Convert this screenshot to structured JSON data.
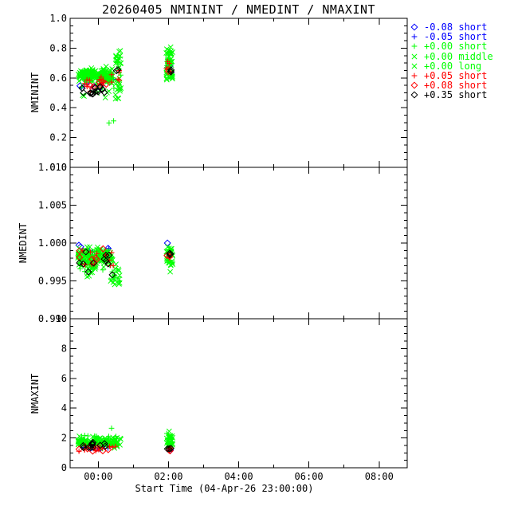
{
  "chart_data": {
    "type": "scatter",
    "title": "20260405 NMININT / NMEDINT / NMAXINT",
    "colors": {
      "blue": "#0000ff",
      "green": "#00ff00",
      "red": "#ff0000",
      "black": "#000000",
      "background": "#ffffff",
      "axis": "#000000"
    },
    "legend": {
      "position": "top-right",
      "items": [
        {
          "symbol": "diamond",
          "color": "blue",
          "label": "-0.08 short"
        },
        {
          "symbol": "plus",
          "color": "blue",
          "label": "-0.05 short"
        },
        {
          "symbol": "plus",
          "color": "green",
          "label": "+0.00 short"
        },
        {
          "symbol": "x",
          "color": "green",
          "label": "+0.00 middle"
        },
        {
          "symbol": "x",
          "color": "green",
          "label": "+0.00 long"
        },
        {
          "symbol": "plus",
          "color": "red",
          "label": "+0.05 short"
        },
        {
          "symbol": "diamond",
          "color": "red",
          "label": "+0.08 short"
        },
        {
          "symbol": "diamond",
          "color": "black",
          "label": "+0.35 short"
        }
      ]
    },
    "xaxis": {
      "title": "Start Time (04-Apr-26 23:00:00)",
      "lim": [
        -0.8,
        8.8
      ],
      "minor": 1,
      "ticks": [
        {
          "v": 0,
          "label": "00:00"
        },
        {
          "v": 2,
          "label": "02:00"
        },
        {
          "v": 4,
          "label": "04:00"
        },
        {
          "v": 6,
          "label": "06:00"
        },
        {
          "v": 8,
          "label": "08:00"
        }
      ]
    },
    "panels": [
      {
        "name": "NMININT",
        "ylim": [
          0.0,
          1.0
        ],
        "yminor": 0.05,
        "yticks": [
          {
            "v": 1.0,
            "label": "1.0"
          },
          {
            "v": 0.8,
            "label": "0.8"
          },
          {
            "v": 0.6,
            "label": "0.6"
          },
          {
            "v": 0.4,
            "label": "0.4"
          },
          {
            "v": 0.2,
            "label": "0.2"
          },
          {
            "v": 0.0,
            "label": "0.0"
          }
        ],
        "series": [
          {
            "legend": 0,
            "clusters": [
              {
                "n": 5,
                "t": [
                  -0.55,
                  0.25
                ],
                "v": [
                  0.515,
                  0.575
                ]
              },
              {
                "n": 2,
                "t": [
                  1.95,
                  2.08
                ],
                "v": [
                  0.66,
                  0.71
                ]
              }
            ]
          },
          {
            "legend": 1,
            "clusters": [
              {
                "n": 6,
                "t": [
                  -0.55,
                  0.45
                ],
                "v": [
                  0.53,
                  0.6
                ]
              },
              {
                "n": 2,
                "t": [
                  1.95,
                  2.1
                ],
                "v": [
                  0.63,
                  0.7
                ]
              }
            ]
          },
          {
            "legend": 2,
            "points": [
              [
                0.31,
                0.298
              ],
              [
                0.44,
                0.312
              ]
            ],
            "clusters": [
              {
                "n": 22,
                "t": [
                  -0.55,
                  0.45
                ],
                "v": [
                  0.525,
                  0.645
                ]
              },
              {
                "n": 6,
                "t": [
                  0.45,
                  0.65
                ],
                "v": [
                  0.55,
                  0.75
                ]
              },
              {
                "n": 7,
                "t": [
                  1.93,
                  2.1
                ],
                "v": [
                  0.6,
                  0.78
                ]
              }
            ]
          },
          {
            "legend": 3,
            "clusters": [
              {
                "n": 85,
                "t": [
                  -0.58,
                  0.4
                ],
                "v": [
                  0.565,
                  0.67
                ],
                "dist": "gauss"
              },
              {
                "n": 25,
                "t": [
                  1.93,
                  2.12
                ],
                "v": [
                  0.6,
                  0.8
                ]
              }
            ]
          },
          {
            "legend": 4,
            "clusters": [
              {
                "n": 85,
                "t": [
                  -0.58,
                  0.42
                ],
                "v": [
                  0.56,
                  0.675
                ],
                "dist": "gauss"
              },
              {
                "n": 30,
                "t": [
                  0.48,
                  0.65
                ],
                "v": [
                  0.46,
                  0.8
                ]
              },
              {
                "n": 8,
                "t": [
                  -0.5,
                  0.55
                ],
                "v": [
                  0.465,
                  0.51
                ]
              },
              {
                "n": 25,
                "t": [
                  1.93,
                  2.12
                ],
                "v": [
                  0.58,
                  0.82
                ]
              }
            ]
          },
          {
            "legend": 5,
            "clusters": [
              {
                "n": 15,
                "t": [
                  -0.55,
                  0.45
                ],
                "v": [
                  0.51,
                  0.625
                ]
              },
              {
                "n": 4,
                "t": [
                  0.48,
                  0.64
                ],
                "v": [
                  0.58,
                  0.67
                ]
              },
              {
                "n": 4,
                "t": [
                  1.94,
                  2.1
                ],
                "v": [
                  0.62,
                  0.73
                ]
              }
            ]
          },
          {
            "legend": 6,
            "clusters": [
              {
                "n": 6,
                "t": [
                  -0.55,
                  0.3
                ],
                "v": [
                  0.52,
                  0.585
                ]
              },
              {
                "n": 2,
                "t": [
                  1.95,
                  2.08
                ],
                "v": [
                  0.62,
                  0.68
                ]
              }
            ]
          },
          {
            "legend": 7,
            "points": [
              [
                0.52,
                0.648
              ],
              [
                0.56,
                0.655
              ]
            ],
            "clusters": [
              {
                "n": 13,
                "t": [
                  -0.57,
                  0.33
                ],
                "v": [
                  0.47,
                  0.545
                ]
              },
              {
                "n": 3,
                "t": [
                  1.96,
                  2.08
                ],
                "v": [
                  0.615,
                  0.665
                ]
              }
            ]
          }
        ]
      },
      {
        "name": "NMEDINT",
        "ylim": [
          0.99,
          1.01
        ],
        "yminor": 0.001,
        "yticks": [
          {
            "v": 1.01,
            "label": "1.010"
          },
          {
            "v": 1.005,
            "label": "1.005"
          },
          {
            "v": 1.0,
            "label": "1.000"
          },
          {
            "v": 0.995,
            "label": "0.995"
          },
          {
            "v": 0.99,
            "label": "0.990"
          }
        ],
        "series": [
          {
            "legend": 0,
            "points": [
              [
                -0.55,
                0.9997
              ],
              [
                -0.5,
                0.9995
              ],
              [
                0.28,
                0.9993
              ],
              [
                1.97,
                1.0
              ]
            ]
          },
          {
            "legend": 1,
            "clusters": [
              {
                "n": 4,
                "t": [
                  -0.5,
                  0.3
                ],
                "v": [
                  0.998,
                  0.9994
                ]
              }
            ]
          },
          {
            "legend": 2,
            "clusters": [
              {
                "n": 18,
                "t": [
                  -0.55,
                  0.42
                ],
                "v": [
                  0.9962,
                  0.999
                ]
              },
              {
                "n": 6,
                "t": [
                  0.35,
                  0.6
                ],
                "v": [
                  0.9948,
                  0.9975
                ]
              },
              {
                "n": 5,
                "t": [
                  1.94,
                  2.1
                ],
                "v": [
                  0.997,
                  0.999
                ]
              }
            ]
          },
          {
            "legend": 3,
            "clusters": [
              {
                "n": 70,
                "t": [
                  -0.58,
                  0.4
                ],
                "v": [
                  0.9968,
                  0.9996
                ],
                "dist": "gauss"
              },
              {
                "n": 18,
                "t": [
                  1.93,
                  2.12
                ],
                "v": [
                  0.9972,
                  0.9995
                ]
              }
            ]
          },
          {
            "legend": 4,
            "points": [
              [
                2.05,
                0.9962
              ]
            ],
            "clusters": [
              {
                "n": 70,
                "t": [
                  -0.58,
                  0.42
                ],
                "v": [
                  0.9965,
                  0.9995
                ],
                "dist": "gauss"
              },
              {
                "n": 10,
                "t": [
                  -0.32,
                  -0.17
                ],
                "v": [
                  0.9952,
                  0.9975
                ]
              },
              {
                "n": 18,
                "t": [
                  0.33,
                  0.62
                ],
                "v": [
                  0.9945,
                  0.998
                ]
              },
              {
                "n": 14,
                "t": [
                  1.95,
                  2.12
                ],
                "v": [
                  0.997,
                  0.9992
                ]
              }
            ]
          },
          {
            "legend": 5,
            "clusters": [
              {
                "n": 12,
                "t": [
                  -0.55,
                  0.45
                ],
                "v": [
                  0.9968,
                  0.999
                ]
              },
              {
                "n": 3,
                "t": [
                  1.95,
                  2.08
                ],
                "v": [
                  0.998,
                  0.9992
                ]
              }
            ]
          },
          {
            "legend": 6,
            "clusters": [
              {
                "n": 6,
                "t": [
                  -0.55,
                  0.35
                ],
                "v": [
                  0.9978,
                  0.9995
                ]
              },
              {
                "n": 2,
                "t": [
                  1.96,
                  2.06
                ],
                "v": [
                  0.9982,
                  0.9993
                ]
              }
            ]
          },
          {
            "legend": 7,
            "points": [
              [
                -0.28,
                0.9962
              ],
              [
                0.4,
                0.9958
              ]
            ],
            "clusters": [
              {
                "n": 9,
                "t": [
                  -0.55,
                  0.38
                ],
                "v": [
                  0.9972,
                  0.9992
                ]
              },
              {
                "n": 3,
                "t": [
                  1.96,
                  2.08
                ],
                "v": [
                  0.9984,
                  0.9995
                ]
              }
            ]
          }
        ]
      },
      {
        "name": "NMAXINT",
        "ylim": [
          0,
          10
        ],
        "yminor": 0.5,
        "yticks": [
          {
            "v": 10,
            "label": "10"
          },
          {
            "v": 8,
            "label": "8"
          },
          {
            "v": 6,
            "label": "6"
          },
          {
            "v": 4,
            "label": "4"
          },
          {
            "v": 2,
            "label": "2"
          },
          {
            "v": 0,
            "label": "0"
          }
        ],
        "series": [
          {
            "legend": 0,
            "clusters": [
              {
                "n": 4,
                "t": [
                  -0.5,
                  0.3
                ],
                "v": [
                  1.2,
                  1.45
                ]
              },
              {
                "n": 2,
                "t": [
                  1.96,
                  2.08
                ],
                "v": [
                  1.05,
                  1.3
                ]
              }
            ]
          },
          {
            "legend": 1,
            "clusters": [
              {
                "n": 4,
                "t": [
                  -0.5,
                  0.4
                ],
                "v": [
                  1.3,
                  1.5
                ]
              },
              {
                "n": 1,
                "t": [
                  2.0,
                  2.06
                ],
                "v": [
                  1.15,
                  1.3
                ]
              }
            ]
          },
          {
            "legend": 2,
            "points": [
              [
                0.38,
                2.65
              ],
              [
                0.3,
                2.1
              ],
              [
                0.52,
                1.95
              ]
            ],
            "clusters": [
              {
                "n": 18,
                "t": [
                  -0.55,
                  0.6
                ],
                "v": [
                  1.45,
                  2.2
                ]
              },
              {
                "n": 6,
                "t": [
                  1.95,
                  2.1
                ],
                "v": [
                  1.6,
                  2.3
                ]
              }
            ]
          },
          {
            "legend": 3,
            "points": [
              [
                2.02,
                2.45
              ],
              [
                2.05,
                2.15
              ]
            ],
            "clusters": [
              {
                "n": 60,
                "t": [
                  -0.58,
                  0.62
                ],
                "v": [
                  1.3,
                  2.0
                ],
                "dist": "gauss"
              },
              {
                "n": 18,
                "t": [
                  1.94,
                  2.12
                ],
                "v": [
                  1.4,
                  2.15
                ]
              }
            ]
          },
          {
            "legend": 4,
            "clusters": [
              {
                "n": 60,
                "t": [
                  -0.58,
                  0.65
                ],
                "v": [
                  1.35,
                  2.1
                ],
                "dist": "gauss"
              },
              {
                "n": 14,
                "t": [
                  1.94,
                  2.12
                ],
                "v": [
                  1.45,
                  2.1
                ]
              }
            ]
          },
          {
            "legend": 5,
            "clusters": [
              {
                "n": 14,
                "t": [
                  -0.55,
                  0.5
                ],
                "v": [
                  1.1,
                  1.45
                ]
              },
              {
                "n": 4,
                "t": [
                  1.95,
                  2.1
                ],
                "v": [
                  1.05,
                  1.35
                ]
              }
            ]
          },
          {
            "legend": 6,
            "clusters": [
              {
                "n": 6,
                "t": [
                  -0.55,
                  0.4
                ],
                "v": [
                  1.1,
                  1.35
                ]
              },
              {
                "n": 2,
                "t": [
                  1.97,
                  2.06
                ],
                "v": [
                  1.1,
                  1.28
                ]
              }
            ]
          },
          {
            "legend": 7,
            "clusters": [
              {
                "n": 14,
                "t": [
                  -0.45,
                  0.4
                ],
                "v": [
                  1.3,
                  1.7
                ]
              },
              {
                "n": 3,
                "t": [
                  1.97,
                  2.08
                ],
                "v": [
                  1.15,
                  1.4
                ]
              }
            ]
          }
        ]
      }
    ]
  }
}
